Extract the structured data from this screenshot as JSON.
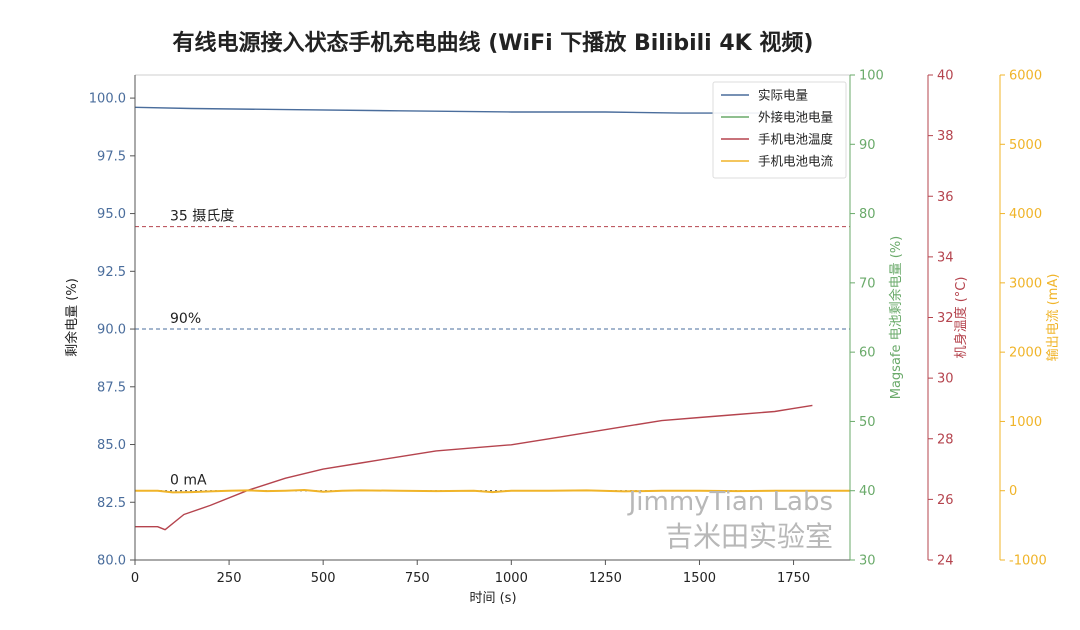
{
  "chart_data": {
    "type": "line",
    "title": "有线电源接入状态手机充电曲线 (WiFi 下播放 Bilibili 4K 视频)",
    "xlabel": "时间 (s)",
    "xlim": [
      0,
      1900
    ],
    "xticks": [
      0,
      250,
      500,
      750,
      1000,
      1250,
      1500,
      1750
    ],
    "axes": [
      {
        "id": "y1",
        "label": "剩余电量 (%)",
        "color": "#4a6d9c",
        "lim": [
          80,
          101
        ],
        "ticks": [
          80.0,
          82.5,
          85.0,
          87.5,
          90.0,
          92.5,
          95.0,
          97.5,
          100.0
        ],
        "decimals": 1
      },
      {
        "id": "y2",
        "label": "Magsafe 电池剩余电量 (%)",
        "color": "#6aaa6a",
        "lim": [
          30,
          100
        ],
        "ticks": [
          30,
          40,
          50,
          60,
          70,
          80,
          90,
          100
        ],
        "decimals": 0
      },
      {
        "id": "y3",
        "label": "机身温度 (°C)",
        "color": "#b5444e",
        "lim": [
          24,
          40
        ],
        "ticks": [
          24,
          26,
          28,
          30,
          32,
          34,
          36,
          38,
          40
        ],
        "decimals": 0
      },
      {
        "id": "y4",
        "label": "输出电流 (mA)",
        "color": "#f0b429",
        "lim": [
          -1000,
          6000
        ],
        "ticks": [
          -1000,
          0,
          1000,
          2000,
          3000,
          4000,
          5000,
          6000
        ],
        "decimals": 0
      }
    ],
    "series": [
      {
        "name": "实际电量",
        "axis": "y1",
        "color": "#4a6d9c",
        "x": [
          0,
          150,
          400,
          700,
          1000,
          1250,
          1450,
          1800
        ],
        "y": [
          99.6,
          99.55,
          99.5,
          99.45,
          99.4,
          99.4,
          99.35,
          99.35
        ]
      },
      {
        "name": "外接电池电量",
        "axis": "y2",
        "color": "#6aaa6a",
        "x": [],
        "y": []
      },
      {
        "name": "手机电池温度",
        "axis": "y3",
        "color": "#b5444e",
        "x": [
          0,
          60,
          80,
          130,
          200,
          300,
          400,
          500,
          600,
          700,
          800,
          900,
          1000,
          1100,
          1200,
          1300,
          1400,
          1500,
          1600,
          1700,
          1750,
          1800
        ],
        "y": [
          25.1,
          25.1,
          25.0,
          25.5,
          25.8,
          26.3,
          26.7,
          27.0,
          27.2,
          27.4,
          27.6,
          27.7,
          27.8,
          28.0,
          28.2,
          28.4,
          28.6,
          28.7,
          28.8,
          28.9,
          29.0,
          29.1
        ]
      },
      {
        "name": "手机电池电流",
        "axis": "y4",
        "color": "#f0b429",
        "x": [
          0,
          60,
          100,
          150,
          200,
          250,
          300,
          350,
          400,
          450,
          500,
          550,
          600,
          700,
          800,
          900,
          950,
          1000,
          1100,
          1200,
          1300,
          1400,
          1500,
          1600,
          1700,
          1800,
          1900
        ],
        "y": [
          0,
          0,
          -25,
          -20,
          -10,
          0,
          5,
          -5,
          0,
          10,
          -15,
          0,
          5,
          0,
          -5,
          0,
          -20,
          0,
          0,
          5,
          -10,
          0,
          0,
          -5,
          0,
          0,
          0
        ]
      }
    ],
    "reference_lines": [
      {
        "axis": "y3",
        "value": 35,
        "label": "35 摄氏度",
        "color": "#b5444e",
        "style": "dashed"
      },
      {
        "axis": "y1",
        "value": 90,
        "label": "90%",
        "color": "#4a6d9c",
        "style": "dashed"
      },
      {
        "axis": "y4",
        "value": 0,
        "label": "0 mA",
        "color": "#333333",
        "style": "dotted"
      }
    ],
    "legend": {
      "placement": "top-right",
      "entries": [
        "实际电量",
        "外接电池电量",
        "手机电池温度",
        "手机电池电流"
      ]
    },
    "grid": false,
    "watermark": {
      "line1": "JimmyTian Labs",
      "line2": "吉米田实验室"
    }
  }
}
